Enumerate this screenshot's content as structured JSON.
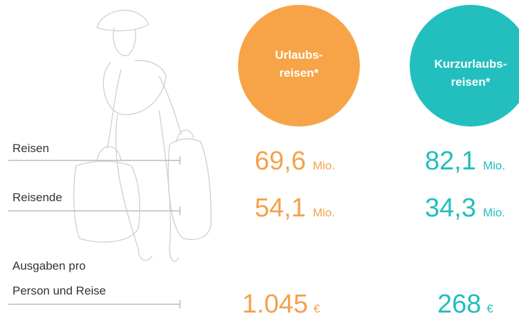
{
  "columns": [
    {
      "title": [
        "Urlaubs-",
        "reisen*"
      ],
      "values": [
        {
          "number": "69,6",
          "unit": "Mio."
        },
        {
          "number": "54,1",
          "unit": "Mio."
        },
        {
          "number": "1.045",
          "unit": "€"
        }
      ]
    },
    {
      "title": [
        "Kurzurlaubs-",
        "reisen*"
      ],
      "values": [
        {
          "number": "82,1",
          "unit": "Mio."
        },
        {
          "number": "34,3",
          "unit": "Mio."
        },
        {
          "number": "268",
          "unit": "€"
        }
      ]
    }
  ],
  "rows": [
    [
      "Reisen"
    ],
    [
      "Reisende"
    ],
    [
      "Ausgaben pro",
      "Person und Reise"
    ]
  ]
}
